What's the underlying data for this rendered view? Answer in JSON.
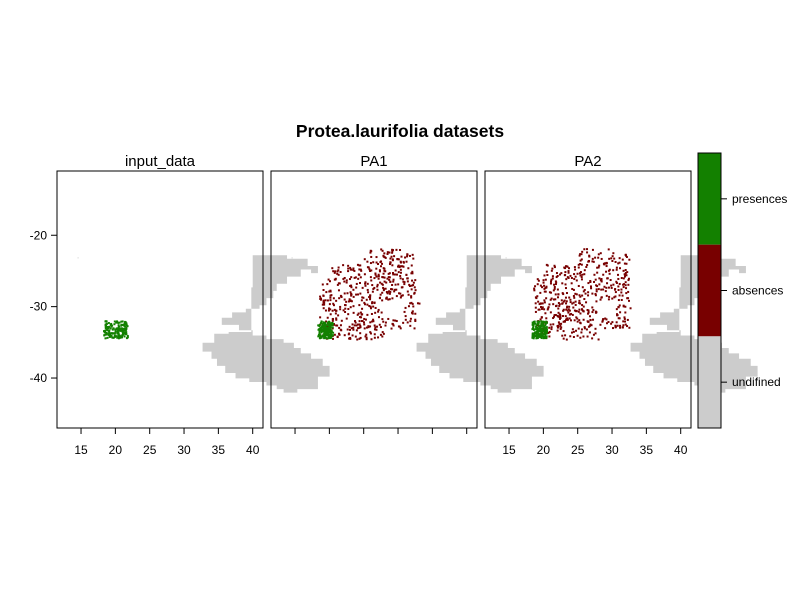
{
  "figure": {
    "title": "Protea.laurifolia datasets"
  },
  "panels": [
    {
      "title": "input_data",
      "mode": "input",
      "show_x_labels": true
    },
    {
      "title": "PA1",
      "mode": "pa",
      "show_x_labels": false
    },
    {
      "title": "PA2",
      "mode": "pa",
      "show_x_labels": true
    }
  ],
  "axes": {
    "x_ticks": [
      "15",
      "20",
      "25",
      "30",
      "35",
      "40"
    ],
    "y_ticks": [
      "-20",
      "-30",
      "-40"
    ],
    "x_range": [
      11.5,
      41.5
    ],
    "y_range": [
      -47,
      -11
    ]
  },
  "legend": {
    "entries": [
      {
        "label": "presences",
        "color": "#138000"
      },
      {
        "label": "absences",
        "color": "#780000"
      },
      {
        "label": "undifined",
        "color": "#cccccc"
      }
    ]
  },
  "colors": {
    "land": "#cccccc",
    "presence": "#138000",
    "absence": "#780000",
    "frame": "#000000"
  }
}
